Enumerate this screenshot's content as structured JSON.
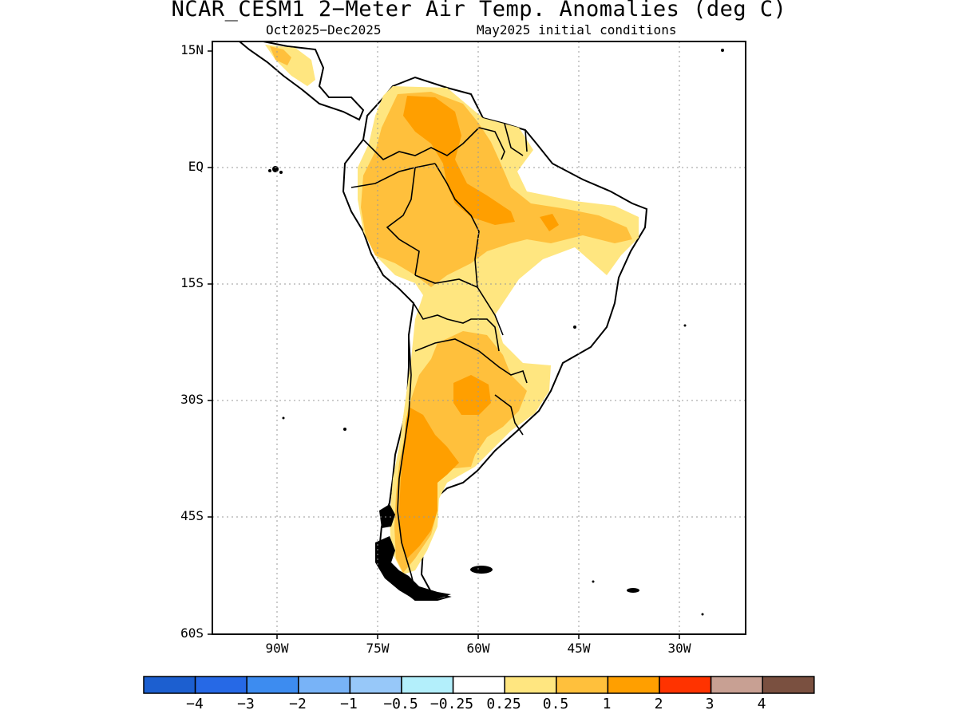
{
  "map": {
    "title": "NCAR_CESM1 2−Meter Air Temp. Anomalies (deg C)",
    "subtitle_left": "Oct2025−Dec2025",
    "subtitle_right": "May2025 initial conditions",
    "lat_labels": [
      "15N",
      "EQ",
      "15S",
      "30S",
      "45S",
      "60S"
    ],
    "lon_labels": [
      "90W",
      "75W",
      "60W",
      "45W",
      "30W"
    ],
    "colorbar": {
      "labels": [
        "−4",
        "−3",
        "−2",
        "−1",
        "−0.5",
        "−0.25",
        "0.25",
        "0.5",
        "1",
        "2",
        "3",
        "4"
      ],
      "colors": [
        "#1c5fd0",
        "#2669e6",
        "#3d8cf0",
        "#78b3f7",
        "#97c8f9",
        "#b3effb",
        "#ffffff",
        "#ffe680",
        "#ffc03c",
        "#ff9f00",
        "#ff3300",
        "#c8a093",
        "#7a5040"
      ]
    },
    "colors": {
      "anom_025_05": "#ffe680",
      "anom_05_1": "#ffc03c",
      "anom_1_2": "#ff9f00",
      "coast": "#000000",
      "grid": "#999999"
    }
  }
}
